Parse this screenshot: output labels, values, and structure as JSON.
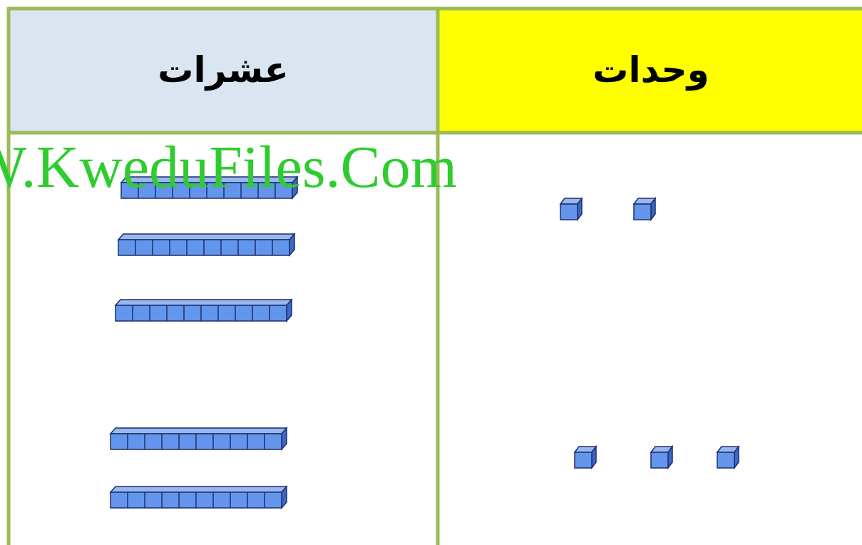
{
  "header": {
    "tens": "عشرات",
    "units": "وحدات"
  },
  "watermark": "W.KweduFiles.Com"
}
